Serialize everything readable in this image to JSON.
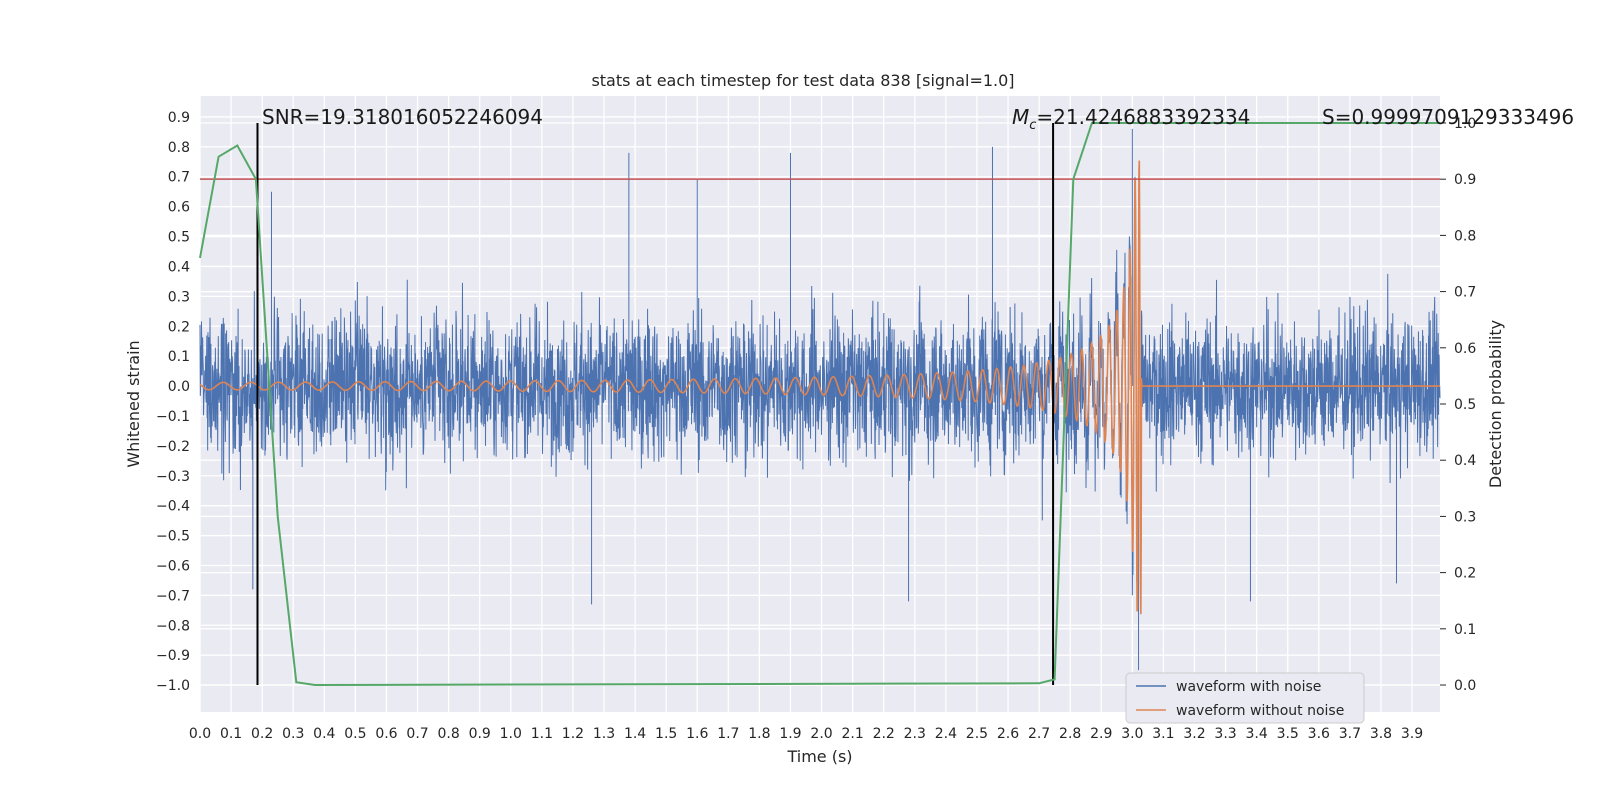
{
  "chart_data": {
    "type": "line",
    "title": "stats at each timestep for test data 838 [signal=1.0]",
    "xlabel": "Time (s)",
    "ylabel": "Whitened strain",
    "y2label": "Detection probability",
    "xlim": [
      0.0,
      3.99
    ],
    "ylim": [
      -1.09,
      0.97
    ],
    "y2lim": [
      -0.048,
      1.048
    ],
    "x_ticks": [
      "0.0",
      "0.1",
      "0.2",
      "0.3",
      "0.4",
      "0.5",
      "0.6",
      "0.7",
      "0.8",
      "0.9",
      "1.0",
      "1.1",
      "1.2",
      "1.3",
      "1.4",
      "1.5",
      "1.6",
      "1.7",
      "1.8",
      "1.9",
      "2.0",
      "2.1",
      "2.2",
      "2.3",
      "2.4",
      "2.5",
      "2.6",
      "2.7",
      "2.8",
      "2.9",
      "3.0",
      "3.1",
      "3.2",
      "3.3",
      "3.4",
      "3.5",
      "3.6",
      "3.7",
      "3.8",
      "3.9"
    ],
    "y_ticks": [
      "0.9",
      "0.8",
      "0.7",
      "0.6",
      "0.5",
      "0.4",
      "0.3",
      "0.2",
      "0.1",
      "0.0",
      "−0.1",
      "−0.2",
      "−0.3",
      "−0.4",
      "−0.5",
      "−0.6",
      "−0.7",
      "−0.8",
      "−0.9",
      "−1.0"
    ],
    "y2_ticks": [
      "1.0",
      "0.9",
      "0.8",
      "0.7",
      "0.6",
      "0.5",
      "0.4",
      "0.3",
      "0.2",
      "0.1",
      "0.0"
    ],
    "grid": true,
    "legend_position": "lower-right",
    "series": [
      {
        "name": "waveform with noise",
        "color": "#4c72b0",
        "axis": "left",
        "description_values": {
          "noise_amplitude": 0.22,
          "spikes": [
            [
              0.17,
              -0.68
            ],
            [
              0.23,
              0.65
            ],
            [
              1.38,
              0.78
            ],
            [
              1.6,
              0.69
            ],
            [
              1.9,
              0.78
            ],
            [
              2.55,
              0.8
            ],
            [
              3.0,
              0.86
            ],
            [
              3.02,
              -0.95
            ],
            [
              1.26,
              -0.73
            ],
            [
              2.28,
              -0.72
            ],
            [
              3.38,
              -0.72
            ],
            [
              3.85,
              -0.66
            ]
          ]
        }
      },
      {
        "name": "waveform without noise",
        "color": "#dd8452",
        "axis": "left",
        "description_values": {
          "merger_time": 3.03,
          "peak_amplitude": 0.77,
          "start_frequency_hz": 11
        }
      },
      {
        "name": "",
        "color": "#55a868",
        "axis": "right",
        "x": [
          0.0,
          0.06,
          0.12,
          0.18,
          0.25,
          0.31,
          0.37,
          2.7,
          2.75,
          2.81,
          2.87,
          3.99
        ],
        "y": [
          0.76,
          0.94,
          0.96,
          0.9,
          0.3,
          0.005,
          0.0,
          0.003,
          0.01,
          0.9,
          1.0,
          1.0
        ]
      }
    ],
    "hlines": [
      {
        "y2": 0.9,
        "color": "#c44e52"
      }
    ],
    "vlines": [
      {
        "x": 0.185,
        "color": "#000000"
      },
      {
        "x": 2.745,
        "color": "#000000"
      }
    ],
    "annotations": [
      {
        "text": "SNR=19.318016052246094"
      },
      {
        "mc_symbol": "M",
        "mc_sub": "c",
        "mc_rest": "=21.4246883392334"
      },
      {
        "text": "S=0.9999709129333496"
      }
    ]
  }
}
